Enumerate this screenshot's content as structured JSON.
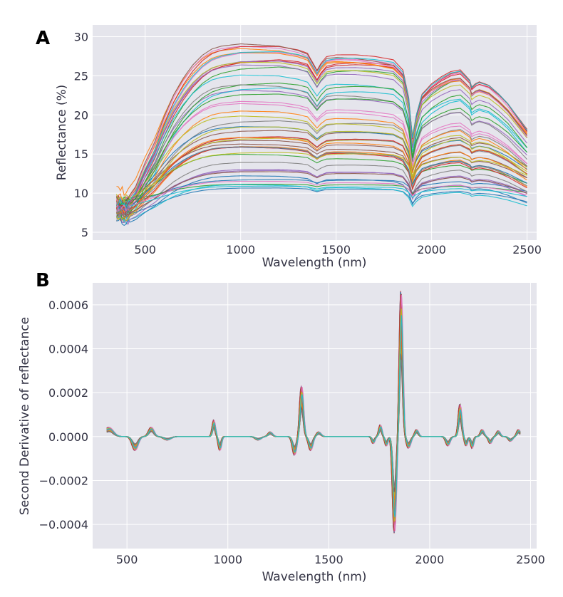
{
  "panels": [
    {
      "letter": "A"
    },
    {
      "letter": "B"
    }
  ],
  "chart_data": [
    {
      "type": "line",
      "panel": "A",
      "xlabel": "Wavelength (nm)",
      "ylabel": "Reflectance (%)",
      "xlim": [
        225,
        2550
      ],
      "ylim": [
        4,
        31.5
      ],
      "xticks": [
        500,
        1000,
        1500,
        2000,
        2500
      ],
      "yticks": [
        5,
        10,
        15,
        20,
        25,
        30
      ],
      "xtick_labels": [
        "500",
        "1000",
        "1500",
        "2000",
        "2500"
      ],
      "ytick_labels": [
        "5",
        "10",
        "15",
        "20",
        "25",
        "30"
      ],
      "grid": true,
      "background": "#e5e5ec",
      "x_range_of_data": [
        350,
        2500
      ],
      "spectrum_shape": {
        "x": [
          350,
          400,
          450,
          500,
          550,
          600,
          650,
          700,
          750,
          800,
          850,
          900,
          950,
          1000,
          1050,
          1100,
          1150,
          1200,
          1250,
          1300,
          1350,
          1380,
          1400,
          1420,
          1450,
          1500,
          1600,
          1700,
          1750,
          1800,
          1850,
          1880,
          1900,
          1920,
          1950,
          2000,
          2050,
          2100,
          2150,
          2200,
          2210,
          2230,
          2250,
          2300,
          2350,
          2400,
          2450,
          2500
        ],
        "shape": [
          0.08,
          0.06,
          0.14,
          0.28,
          0.4,
          0.55,
          0.68,
          0.78,
          0.86,
          0.92,
          0.96,
          0.98,
          0.99,
          1.0,
          1.0,
          1.0,
          1.0,
          1.0,
          0.99,
          0.98,
          0.96,
          0.9,
          0.86,
          0.9,
          0.94,
          0.95,
          0.95,
          0.94,
          0.93,
          0.92,
          0.86,
          0.7,
          0.46,
          0.6,
          0.72,
          0.78,
          0.82,
          0.85,
          0.86,
          0.8,
          0.76,
          0.78,
          0.79,
          0.77,
          0.72,
          0.66,
          0.58,
          0.5
        ]
      },
      "series_count": 50,
      "series_plateau_range": [
        10.5,
        29.3
      ],
      "colors": [
        "#1f77b4",
        "#ff7f0e",
        "#2ca02c",
        "#d62728",
        "#9467bd",
        "#8c564b",
        "#e377c2",
        "#7f7f7f",
        "#bcbd22",
        "#17becf"
      ]
    },
    {
      "type": "line",
      "panel": "B",
      "xlabel": "Wavelength (nm)",
      "ylabel": "Second Derivative of reflectance",
      "xlim": [
        330,
        2530
      ],
      "ylim": [
        -0.00051,
        0.0007
      ],
      "xticks": [
        500,
        1000,
        1500,
        2000,
        2500
      ],
      "yticks": [
        -0.0004,
        -0.0002,
        0.0,
        0.0002,
        0.0004,
        0.0006
      ],
      "xtick_labels": [
        "500",
        "1000",
        "1500",
        "2000",
        "2500"
      ],
      "ytick_labels": [
        "−0.0004",
        "−0.0002",
        "0.0000",
        "0.0002",
        "0.0004",
        "0.0006"
      ],
      "grid": true,
      "background": "#e5e5ec",
      "x_range_of_data": [
        400,
        2450
      ],
      "derivative_features": [
        {
          "x": 410,
          "amp": 4e-05,
          "w": 30
        },
        {
          "x": 540,
          "amp": -6e-05,
          "w": 20
        },
        {
          "x": 620,
          "amp": 4e-05,
          "w": 18
        },
        {
          "x": 700,
          "amp": -1.5e-05,
          "w": 25
        },
        {
          "x": 930,
          "amp": 7e-05,
          "w": 10
        },
        {
          "x": 960,
          "amp": -6e-05,
          "w": 10
        },
        {
          "x": 1150,
          "amp": -1.5e-05,
          "w": 20
        },
        {
          "x": 1210,
          "amp": 2e-05,
          "w": 15
        },
        {
          "x": 1330,
          "amp": -8e-05,
          "w": 14
        },
        {
          "x": 1365,
          "amp": 0.00022,
          "w": 12
        },
        {
          "x": 1410,
          "amp": -6e-05,
          "w": 14
        },
        {
          "x": 1450,
          "amp": 2e-05,
          "w": 15
        },
        {
          "x": 1720,
          "amp": -3e-05,
          "w": 10
        },
        {
          "x": 1755,
          "amp": 5e-05,
          "w": 10
        },
        {
          "x": 1785,
          "amp": -4e-05,
          "w": 10
        },
        {
          "x": 1825,
          "amp": -0.00042,
          "w": 12
        },
        {
          "x": 1858,
          "amp": 0.00063,
          "w": 11
        },
        {
          "x": 1895,
          "amp": -5e-05,
          "w": 14
        },
        {
          "x": 1935,
          "amp": 3e-05,
          "w": 12
        },
        {
          "x": 2090,
          "amp": -4e-05,
          "w": 14
        },
        {
          "x": 2150,
          "amp": 0.00014,
          "w": 11
        },
        {
          "x": 2180,
          "amp": -4e-05,
          "w": 10
        },
        {
          "x": 2210,
          "amp": -5e-05,
          "w": 10
        },
        {
          "x": 2260,
          "amp": 3e-05,
          "w": 12
        },
        {
          "x": 2300,
          "amp": -3e-05,
          "w": 12
        },
        {
          "x": 2340,
          "amp": 2.5e-05,
          "w": 12
        },
        {
          "x": 2400,
          "amp": -2e-05,
          "w": 14
        },
        {
          "x": 2440,
          "amp": 3e-05,
          "w": 12
        }
      ],
      "series_count": 40,
      "series_scale_range": [
        0.55,
        1.07
      ],
      "colors": [
        "#1f77b4",
        "#ff7f0e",
        "#2ca02c",
        "#d62728",
        "#9467bd",
        "#8c564b",
        "#e377c2",
        "#7f7f7f",
        "#bcbd22",
        "#17becf"
      ]
    }
  ]
}
